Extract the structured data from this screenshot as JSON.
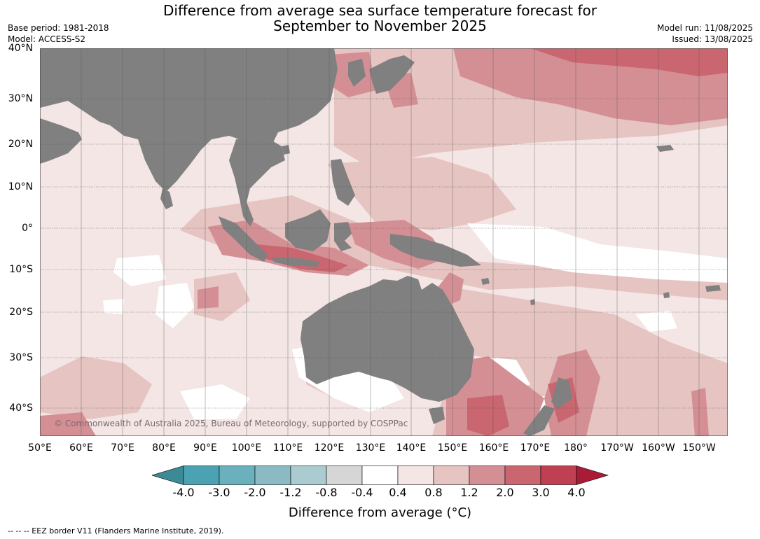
{
  "title_line1": "Difference from average sea surface temperature forecast for",
  "title_line2": "September to November 2025",
  "meta_left": {
    "base_period": "Base period: 1981-2018",
    "model": "Model: ACCESS-S2"
  },
  "meta_right": {
    "model_run": "Model run: 11/08/2025",
    "issued": "Issued: 13/08/2025"
  },
  "lat_labels": [
    "40°N",
    "30°N",
    "20°N",
    "10°N",
    "0°",
    "10°S",
    "20°S",
    "30°S",
    "40°S"
  ],
  "lon_labels": [
    "50°E",
    "60°E",
    "70°E",
    "80°E",
    "90°E",
    "100°E",
    "110°E",
    "120°E",
    "130°E",
    "140°E",
    "150°E",
    "160°E",
    "170°E",
    "180°",
    "170°W",
    "160°W",
    "150°W"
  ],
  "copyright": "© Commonwealth of Australia 2025, Bureau of Meteorology, supported by COSPPac",
  "colorbar": {
    "ticks": [
      "-4.0",
      "-3.0",
      "-2.0",
      "-1.2",
      "-0.8",
      "-0.4",
      "0.4",
      "0.8",
      "1.2",
      "2.0",
      "3.0",
      "4.0"
    ],
    "colors": [
      "#3c8a96",
      "#4aa2b2",
      "#6bb0bd",
      "#8bbac5",
      "#aacbcf",
      "#d6d6d6",
      "#ffffff",
      "#f3e6e5",
      "#e6c4c1",
      "#d48f95",
      "#c9666f",
      "#bf4052",
      "#a81c36"
    ],
    "label": "Difference from average (°C)"
  },
  "footer": "-- -- -- EEZ border V11 (Flanders Marine Institute, 2019).",
  "map_colors": {
    "land": "#808080",
    "grid": "#555555"
  }
}
